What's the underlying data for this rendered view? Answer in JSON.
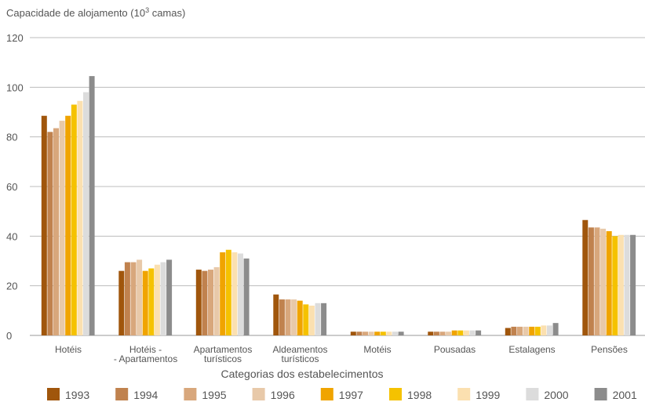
{
  "chart_data": {
    "type": "bar",
    "ylabel": "Capacidade de alojamento (10",
    "ylabel_sup": "3",
    "ylabel_tail": " camas)",
    "xlabel": "Categorias dos estabelecimentos",
    "ylim": [
      0,
      120
    ],
    "yticks": [
      "0",
      "20",
      "40",
      "60",
      "80",
      "100",
      "120"
    ],
    "grid": true,
    "legend_position": "bottom",
    "categories": [
      [
        "Hotéis"
      ],
      [
        "Hotéis -",
        "- Apartamentos"
      ],
      [
        "Apartamentos",
        "turísticos"
      ],
      [
        "Aldeamentos",
        "turísticos"
      ],
      [
        "Motéis"
      ],
      [
        "Pousadas"
      ],
      [
        "Estalagens"
      ],
      [
        "Pensões"
      ]
    ],
    "series": [
      {
        "name": "1993",
        "color": "#a0560c",
        "values": [
          88.5,
          26,
          26.5,
          16.5,
          1.5,
          1.5,
          3,
          46.5
        ]
      },
      {
        "name": "1994",
        "color": "#c0824e",
        "values": [
          82,
          29.5,
          26,
          14.5,
          1.5,
          1.5,
          3.5,
          43.5
        ]
      },
      {
        "name": "1995",
        "color": "#d8a77c",
        "values": [
          83.5,
          29.5,
          26.5,
          14.5,
          1.5,
          1.5,
          3.5,
          43.5
        ]
      },
      {
        "name": "1996",
        "color": "#e8c9a9",
        "values": [
          86.5,
          30.5,
          27.5,
          14.5,
          1.5,
          1.5,
          3.5,
          43
        ]
      },
      {
        "name": "1997",
        "color": "#f0a400",
        "values": [
          88.5,
          26,
          33.5,
          14,
          1.5,
          2,
          3.5,
          42
        ]
      },
      {
        "name": "1998",
        "color": "#f5c200",
        "values": [
          93,
          27,
          34.5,
          12.5,
          1.5,
          2,
          3.5,
          40
        ]
      },
      {
        "name": "1999",
        "color": "#fbe0b0",
        "values": [
          94.5,
          28.5,
          33.5,
          12,
          1.5,
          2,
          4,
          40.5
        ]
      },
      {
        "name": "2000",
        "color": "#dcdcdc",
        "values": [
          98,
          29.5,
          33,
          13,
          1.5,
          2,
          4,
          40.5
        ]
      },
      {
        "name": "2001",
        "color": "#8c8c8c",
        "values": [
          104.5,
          30.5,
          31,
          13,
          1.5,
          2,
          5,
          40.5
        ]
      }
    ]
  }
}
